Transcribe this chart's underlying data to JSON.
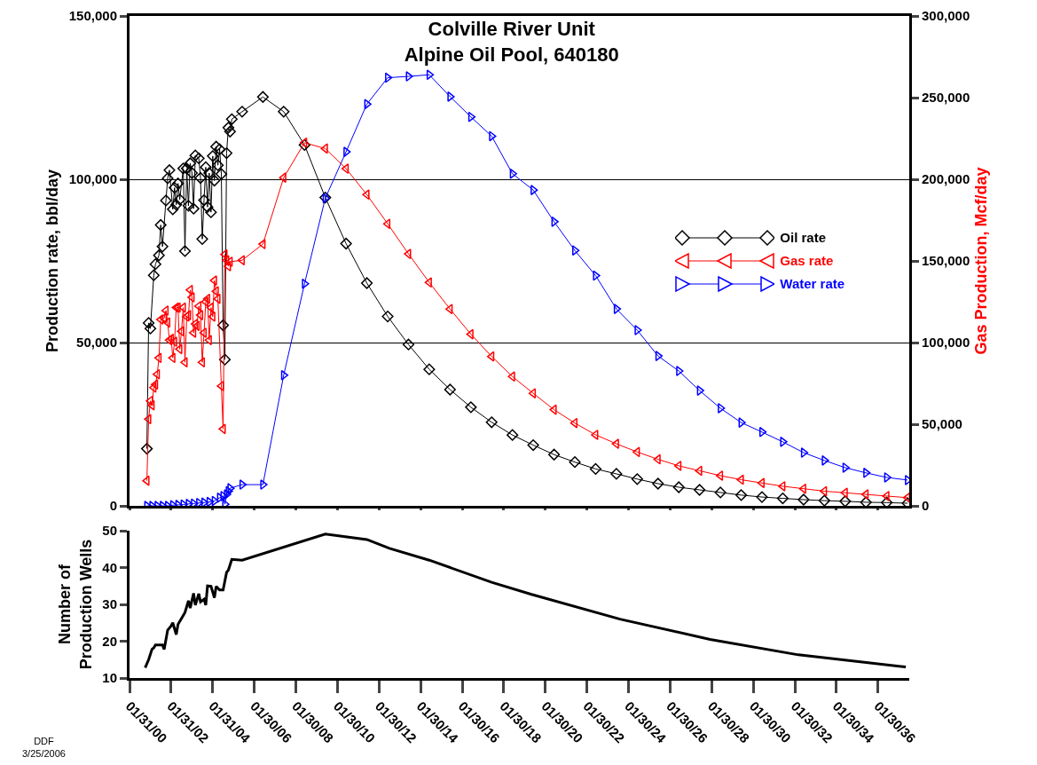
{
  "chart_data": [
    {
      "type": "line",
      "title": "Colville River Unit\nAlpine Oil Pool, 640180",
      "ylabel": "Production rate, bbl/day",
      "y2label": "Gas Production, Mcf/day",
      "xlim": [
        "2000-01-31",
        "2037-07-31"
      ],
      "xticks": [
        {
          "value": "2000-01-31",
          "label": null
        },
        {
          "value": "2002-01-31",
          "label": null
        },
        {
          "value": "2004-01-31",
          "label": null
        },
        {
          "value": "2006-01-30",
          "label": null
        },
        {
          "value": "2008-01-30",
          "label": null
        },
        {
          "value": "2010-01-30",
          "label": null
        },
        {
          "value": "2012-01-30",
          "label": null
        },
        {
          "value": "2014-01-30",
          "label": null
        },
        {
          "value": "2016-01-30",
          "label": null
        },
        {
          "value": "2018-01-30",
          "label": null
        },
        {
          "value": "2020-01-30",
          "label": null
        },
        {
          "value": "2022-01-30",
          "label": null
        },
        {
          "value": "2024-01-30",
          "label": null
        },
        {
          "value": "2026-01-30",
          "label": null
        },
        {
          "value": "2028-01-30",
          "label": null
        },
        {
          "value": "2030-01-30",
          "label": null
        },
        {
          "value": "2032-01-30",
          "label": null
        },
        {
          "value": "2034-01-30",
          "label": null
        },
        {
          "value": "2036-01-30",
          "label": null
        }
      ],
      "ylim": [
        0,
        150000
      ],
      "yticks": [
        0,
        {
          "value": 50000,
          "label": "50,000"
        },
        {
          "value": 100000,
          "label": "100,000"
        },
        {
          "value": 150000,
          "label": "150,000"
        }
      ],
      "y2lim": [
        0,
        300000
      ],
      "y2ticks": [
        0,
        {
          "value": 50000,
          "label": "50,000"
        },
        {
          "value": 100000,
          "label": "100,000"
        },
        {
          "value": 150000,
          "label": "150,000"
        },
        {
          "value": 200000,
          "label": "200,000"
        },
        {
          "value": 250000,
          "label": "250,000"
        },
        {
          "value": 300000,
          "label": "300,000"
        }
      ],
      "grid": "y",
      "legend": "right",
      "tick_labels": "y",
      "series": [
        {
          "name": "Oil rate",
          "color": "#000000",
          "marker": "diamond",
          "x": [
            "2000-12",
            "2001-01",
            "2001-02",
            "2001-04",
            "2001-05",
            "2001-07",
            "2001-08",
            "2001-09",
            "2001-11",
            "2001-12",
            "2002-01",
            "2002-03",
            "2002-04",
            "2002-05",
            "2002-06",
            "2002-07",
            "2002-09",
            "2002-10",
            "2002-11",
            "2002-12",
            "2003-01",
            "2003-02",
            "2003-03",
            "2003-04",
            "2003-06",
            "2003-07",
            "2003-08",
            "2003-09",
            "2003-10",
            "2003-11",
            "2003-12",
            "2004-01",
            "2004-02",
            "2004-03",
            "2004-04",
            "2004-05",
            "2004-06",
            "2004-07",
            "2004-08",
            "2004-09",
            "2004-10",
            "2004-11",
            "2004-12",
            "2005-01",
            "2005-07",
            "2006-07",
            "2007-07",
            "2008-07",
            "2009-07",
            "2010-07",
            "2011-07",
            "2012-07",
            "2013-07",
            "2014-07",
            "2015-07",
            "2016-07",
            "2017-07",
            "2018-07",
            "2019-07",
            "2020-07",
            "2021-07",
            "2022-07",
            "2023-07",
            "2024-07",
            "2025-07",
            "2026-07",
            "2027-07",
            "2028-07",
            "2029-07",
            "2030-07",
            "2031-07",
            "2032-07",
            "2033-07",
            "2034-07",
            "2035-07",
            "2036-07",
            "2037-07"
          ],
          "values": [
            17500,
            56000,
            54300,
            70600,
            74000,
            76700,
            86000,
            79400,
            93500,
            100300,
            102800,
            90800,
            97400,
            92200,
            98700,
            93800,
            103300,
            78000,
            103300,
            91900,
            104900,
            101900,
            91000,
            107300,
            106400,
            100400,
            81700,
            93600,
            103700,
            91500,
            101900,
            89900,
            107100,
            99600,
            110000,
            104300,
            109200,
            101600,
            55300,
            44800,
            108000,
            115800,
            114600,
            118400,
            120700,
            125200,
            120700,
            110500,
            94400,
            80300,
            68200,
            58000,
            49400,
            41800,
            35600,
            30200,
            25600,
            21700,
            18600,
            15700,
            13400,
            11300,
            9800,
            8200,
            6800,
            5700,
            4900,
            4100,
            3300,
            2700,
            2300,
            1900,
            1600,
            1400,
            1100,
            1000,
            800
          ]
        },
        {
          "name": "Gas rate",
          "color": "#ff0000",
          "marker": "triangle-left",
          "axis": "y2",
          "x": [
            "2000-12",
            "2001-01",
            "2001-02",
            "2001-03",
            "2001-04",
            "2001-05",
            "2001-06",
            "2001-07",
            "2001-08",
            "2001-10",
            "2001-11",
            "2001-12",
            "2002-01",
            "2002-02",
            "2002-03",
            "2002-04",
            "2002-05",
            "2002-06",
            "2002-07",
            "2002-08",
            "2002-09",
            "2002-10",
            "2002-11",
            "2002-12",
            "2003-01",
            "2003-02",
            "2003-03",
            "2003-04",
            "2003-05",
            "2003-06",
            "2003-07",
            "2003-08",
            "2003-09",
            "2003-10",
            "2003-11",
            "2003-12",
            "2004-01",
            "2004-02",
            "2004-03",
            "2004-04",
            "2004-05",
            "2004-07",
            "2004-08",
            "2004-09",
            "2004-10",
            "2004-11",
            "2004-12",
            "2005-07",
            "2006-07",
            "2007-07",
            "2008-07",
            "2009-07",
            "2010-07",
            "2011-07",
            "2012-07",
            "2013-07",
            "2014-07",
            "2015-07",
            "2016-07",
            "2017-07",
            "2018-07",
            "2019-07",
            "2020-07",
            "2021-07",
            "2022-07",
            "2023-07",
            "2024-07",
            "2025-07",
            "2026-07",
            "2027-07",
            "2028-07",
            "2029-07",
            "2030-07",
            "2031-07",
            "2032-07",
            "2033-07",
            "2034-07",
            "2035-07",
            "2036-07",
            "2037-07"
          ],
          "values": [
            15400,
            53100,
            64300,
            61600,
            72400,
            74300,
            80600,
            90600,
            114100,
            115000,
            119600,
            112300,
            101500,
            102300,
            90600,
            100500,
            121400,
            121400,
            96000,
            106900,
            121400,
            87900,
            115900,
            116800,
            132200,
            127700,
            106000,
            111400,
            110200,
            122300,
            116800,
            87900,
            106000,
            125000,
            126800,
            101500,
            121400,
            115900,
            138000,
            131400,
            126800,
            73400,
            47100,
            154000,
            150400,
            146700,
            149500,
            150400,
            160300,
            201000,
            222400,
            218800,
            206500,
            190600,
            172700,
            154300,
            136800,
            120500,
            105100,
            91500,
            79200,
            68900,
            58900,
            50700,
            43500,
            38000,
            33000,
            28500,
            24500,
            21500,
            18500,
            16000,
            14000,
            12000,
            10500,
            9000,
            8000,
            7000,
            6000,
            5000
          ]
        },
        {
          "name": "Water rate",
          "color": "#0000ff",
          "marker": "triangle-right",
          "x": [
            "2000-12",
            "2001-03",
            "2001-06",
            "2001-09",
            "2001-12",
            "2002-03",
            "2002-06",
            "2002-09",
            "2002-12",
            "2003-03",
            "2003-06",
            "2003-09",
            "2003-12",
            "2004-03",
            "2004-06",
            "2004-08",
            "2004-09",
            "2004-10",
            "2004-11",
            "2004-12",
            "2005-07",
            "2006-07",
            "2007-07",
            "2008-07",
            "2009-07",
            "2010-07",
            "2011-07",
            "2012-07",
            "2013-07",
            "2014-07",
            "2015-07",
            "2016-07",
            "2017-07",
            "2018-07",
            "2019-07",
            "2020-07",
            "2021-07",
            "2022-07",
            "2023-07",
            "2024-07",
            "2025-07",
            "2026-07",
            "2027-07",
            "2028-07",
            "2029-07",
            "2030-07",
            "2031-07",
            "2032-07",
            "2033-07",
            "2034-07",
            "2035-07",
            "2036-07",
            "2037-07"
          ],
          "values": [
            0,
            0,
            0,
            0,
            0,
            200,
            300,
            400,
            600,
            700,
            900,
            1000,
            1200,
            1500,
            2500,
            3000,
            500,
            3500,
            4500,
            5400,
            6500,
            6500,
            40000,
            68000,
            94200,
            108400,
            123000,
            131100,
            131500,
            132000,
            125300,
            119100,
            113200,
            101700,
            96700,
            87000,
            78200,
            70500,
            60300,
            53800,
            45900,
            41300,
            35300,
            29900,
            25500,
            22600,
            19600,
            16300,
            13900,
            11700,
            10100,
            8700,
            7900
          ]
        }
      ]
    },
    {
      "type": "line",
      "ylabel": "Number of\nProduction Wells",
      "color": "#000000",
      "marker": "none",
      "grid": false,
      "xlim": [
        "2000-01-31",
        "2037-07-31"
      ],
      "xticks": [
        {
          "value": "2000-01-31",
          "label": "01/31/00"
        },
        {
          "value": "2002-01-31",
          "label": "01/31/02"
        },
        {
          "value": "2004-01-31",
          "label": "01/31/04"
        },
        {
          "value": "2006-01-30",
          "label": "01/30/06"
        },
        {
          "value": "2008-01-30",
          "label": "01/30/08"
        },
        {
          "value": "2010-01-30",
          "label": "01/30/10"
        },
        {
          "value": "2012-01-30",
          "label": "01/30/12"
        },
        {
          "value": "2014-01-30",
          "label": "01/30/14"
        },
        {
          "value": "2016-01-30",
          "label": "01/30/16"
        },
        {
          "value": "2018-01-30",
          "label": "01/30/18"
        },
        {
          "value": "2020-01-30",
          "label": "01/30/20"
        },
        {
          "value": "2022-01-30",
          "label": "01/30/22"
        },
        {
          "value": "2024-01-30",
          "label": "01/30/24"
        },
        {
          "value": "2026-01-30",
          "label": "01/30/26"
        },
        {
          "value": "2028-01-30",
          "label": "01/30/28"
        },
        {
          "value": "2030-01-30",
          "label": "01/30/30"
        },
        {
          "value": "2032-01-30",
          "label": "01/30/32"
        },
        {
          "value": "2034-01-30",
          "label": "01/30/34"
        },
        {
          "value": "2036-01-30",
          "label": "01/30/36"
        }
      ],
      "ylim": [
        10,
        50
      ],
      "yticks": [
        10,
        20,
        30,
        40,
        50
      ],
      "x": [
        "2000-11",
        "2001-01",
        "2001-03",
        "2001-04",
        "2001-05",
        "2001-09",
        "2001-10",
        "2001-12",
        "2002-02",
        "2002-03",
        "2002-05",
        "2002-06",
        "2002-09",
        "2002-10",
        "2002-12",
        "2003-01",
        "2003-03",
        "2003-04",
        "2003-06",
        "2003-07",
        "2003-09",
        "2003-10",
        "2003-11",
        "2004-01",
        "2004-03",
        "2004-04",
        "2004-06",
        "2004-08",
        "2004-10",
        "2004-11",
        "2005-01",
        "2005-07",
        "2009-07",
        "2011-07",
        "2012-08",
        "2014-07",
        "2017-07",
        "2019-06",
        "2023-09",
        "2028-01",
        "2032-04",
        "2037-06"
      ],
      "values": [
        12.8,
        15,
        17.8,
        18.2,
        19,
        19,
        17.8,
        23,
        24.2,
        25,
        21.8,
        24.6,
        27,
        27.8,
        31,
        29,
        33,
        29.8,
        32.9,
        30.7,
        31.4,
        29.8,
        35,
        34.9,
        31.8,
        34.9,
        33.9,
        33.9,
        38.7,
        39.3,
        42.2,
        42,
        49.1,
        47.6,
        45.2,
        42,
        36,
        32.7,
        26,
        20.5,
        16.3,
        13
      ],
      "annotations": [
        "DDF\n3/25/2006"
      ]
    }
  ]
}
